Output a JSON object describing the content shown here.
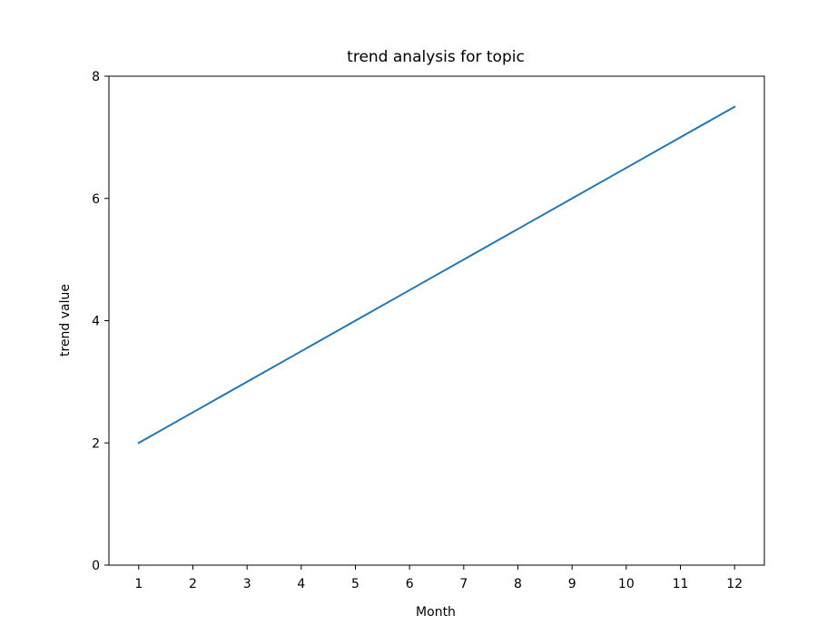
{
  "chart_data": {
    "type": "line",
    "title": "trend analysis for topic",
    "xlabel": "Month",
    "ylabel": "trend value",
    "x": [
      1,
      2,
      3,
      4,
      5,
      6,
      7,
      8,
      9,
      10,
      11,
      12
    ],
    "series": [
      {
        "values": [
          2.0,
          2.5,
          3.0,
          3.5,
          4.0,
          4.5,
          5.0,
          5.5,
          6.0,
          6.5,
          7.0,
          7.5
        ],
        "color": "#1f77b4"
      }
    ],
    "xlim": [
      0.45,
      12.55
    ],
    "ylim": [
      0,
      8
    ],
    "xticks": [
      "1",
      "2",
      "3",
      "4",
      "5",
      "6",
      "7",
      "8",
      "9",
      "10",
      "11",
      "12"
    ],
    "yticks": [
      "0",
      "2",
      "4",
      "6",
      "8"
    ],
    "grid": false,
    "legend": "none"
  }
}
